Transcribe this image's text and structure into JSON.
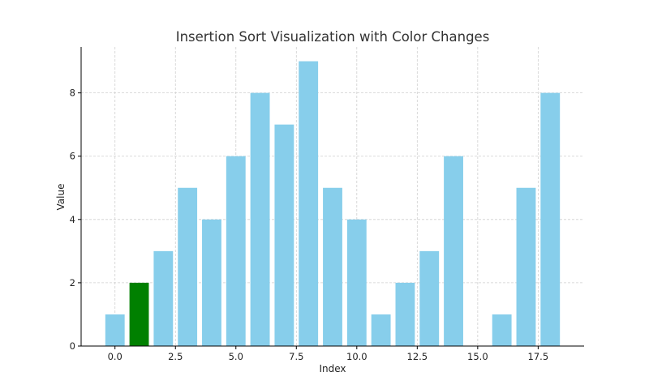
{
  "chart_data": {
    "type": "bar",
    "title": "Insertion Sort Visualization with Color Changes",
    "xlabel": "Index",
    "ylabel": "Value",
    "x": [
      0,
      1,
      2,
      3,
      4,
      5,
      6,
      7,
      8,
      9,
      10,
      11,
      12,
      13,
      14,
      15,
      16,
      17,
      18
    ],
    "values": [
      1,
      2,
      3,
      5,
      4,
      6,
      8,
      7,
      9,
      5,
      4,
      1,
      2,
      3,
      6,
      0,
      1,
      5,
      8
    ],
    "colors": [
      "#87ceeb",
      "#008000",
      "#87ceeb",
      "#87ceeb",
      "#87ceeb",
      "#87ceeb",
      "#87ceeb",
      "#87ceeb",
      "#87ceeb",
      "#87ceeb",
      "#87ceeb",
      "#87ceeb",
      "#87ceeb",
      "#87ceeb",
      "#87ceeb",
      "#87ceeb",
      "#87ceeb",
      "#87ceeb",
      "#87ceeb"
    ],
    "default_color": "#87ceeb",
    "highlight_color": "#008000",
    "highlight_index": 1,
    "xlim": [
      -1.4,
      19.4
    ],
    "ylim": [
      0,
      9.45
    ],
    "xticks": [
      "0.0",
      "2.5",
      "5.0",
      "7.5",
      "10.0",
      "12.5",
      "15.0",
      "17.5"
    ],
    "xtick_values": [
      0,
      2.5,
      5,
      7.5,
      10,
      12.5,
      15,
      17.5
    ],
    "yticks": [
      "0",
      "2",
      "4",
      "6",
      "8"
    ],
    "ytick_values": [
      0,
      2,
      4,
      6,
      8
    ],
    "grid": true
  }
}
